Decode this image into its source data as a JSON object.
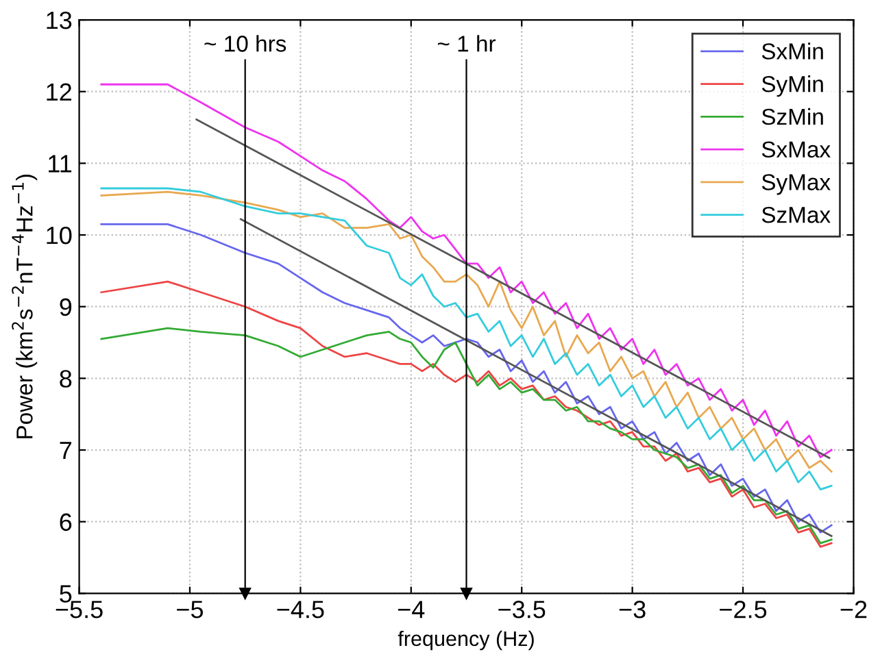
{
  "chart_data": {
    "type": "line",
    "xlabel": "frequency (Hz)",
    "ylabel": "Power (km$^{2}$s$^{−2}$nT$^{−4}$Hz$^{−1}$)",
    "x": [
      -5.4,
      -5.1,
      -4.95,
      -4.75,
      -4.6,
      -4.5,
      -4.4,
      -4.3,
      -4.2,
      -4.1,
      -4.05,
      -4.0,
      -3.95,
      -3.9,
      -3.85,
      -3.8,
      -3.75,
      -3.7,
      -3.65,
      -3.6,
      -3.55,
      -3.5,
      -3.45,
      -3.4,
      -3.35,
      -3.3,
      -3.25,
      -3.2,
      -3.15,
      -3.1,
      -3.05,
      -3.0,
      -2.95,
      -2.9,
      -2.85,
      -2.8,
      -2.75,
      -2.7,
      -2.65,
      -2.6,
      -2.55,
      -2.5,
      -2.45,
      -2.4,
      -2.35,
      -2.3,
      -2.25,
      -2.2,
      -2.15,
      -2.1
    ],
    "series": [
      {
        "name": "SxMin",
        "color": "#6666ee",
        "values": [
          10.15,
          10.15,
          10.0,
          9.75,
          9.6,
          9.4,
          9.2,
          9.05,
          8.95,
          8.85,
          8.7,
          8.6,
          8.5,
          8.6,
          8.45,
          8.5,
          8.55,
          8.5,
          8.3,
          8.4,
          8.1,
          8.25,
          7.95,
          8.1,
          7.8,
          7.95,
          7.65,
          7.75,
          7.5,
          7.6,
          7.3,
          7.4,
          7.15,
          7.25,
          6.95,
          7.1,
          6.85,
          6.95,
          6.65,
          6.8,
          6.5,
          6.6,
          6.35,
          6.45,
          6.15,
          6.3,
          6.0,
          6.1,
          5.85,
          5.95
        ]
      },
      {
        "name": "SyMin",
        "color": "#ee4444",
        "values": [
          9.2,
          9.35,
          9.2,
          9.0,
          8.8,
          8.7,
          8.45,
          8.3,
          8.35,
          8.25,
          8.2,
          8.2,
          8.1,
          8.2,
          8.05,
          7.95,
          8.05,
          7.95,
          8.1,
          7.9,
          8.0,
          7.85,
          7.9,
          7.7,
          7.75,
          7.6,
          7.55,
          7.45,
          7.35,
          7.4,
          7.2,
          7.25,
          7.05,
          7.05,
          6.85,
          6.95,
          6.7,
          6.75,
          6.55,
          6.6,
          6.35,
          6.45,
          6.2,
          6.25,
          6.05,
          6.1,
          5.85,
          5.9,
          5.65,
          5.7
        ]
      },
      {
        "name": "SzMin",
        "color": "#33aa33",
        "values": [
          8.55,
          8.7,
          8.65,
          8.6,
          8.45,
          8.3,
          8.4,
          8.5,
          8.6,
          8.65,
          8.55,
          8.5,
          8.3,
          8.15,
          8.4,
          8.5,
          8.2,
          7.9,
          8.05,
          7.85,
          7.95,
          7.8,
          7.85,
          7.7,
          7.7,
          7.55,
          7.6,
          7.4,
          7.4,
          7.3,
          7.25,
          7.15,
          7.15,
          7.0,
          6.95,
          6.9,
          6.75,
          6.8,
          6.6,
          6.65,
          6.4,
          6.5,
          6.3,
          6.3,
          6.1,
          6.15,
          5.9,
          5.95,
          5.7,
          5.75
        ]
      },
      {
        "name": "SxMax",
        "color": "#ee33ee",
        "values": [
          12.1,
          12.1,
          11.85,
          11.5,
          11.3,
          11.1,
          10.9,
          10.75,
          10.5,
          10.2,
          10.1,
          10.25,
          10.05,
          9.95,
          10.0,
          9.8,
          9.6,
          9.6,
          9.4,
          9.55,
          9.2,
          9.35,
          9.05,
          9.2,
          8.9,
          9.05,
          8.7,
          8.9,
          8.55,
          8.7,
          8.4,
          8.55,
          8.2,
          8.4,
          8.05,
          8.2,
          7.9,
          8.0,
          7.7,
          7.85,
          7.55,
          7.7,
          7.35,
          7.55,
          7.2,
          7.4,
          7.05,
          7.2,
          6.9,
          7.0
        ]
      },
      {
        "name": "SyMax",
        "color": "#e8a850",
        "values": [
          10.55,
          10.6,
          10.55,
          10.45,
          10.35,
          10.25,
          10.3,
          10.1,
          10.1,
          10.15,
          9.95,
          10.0,
          9.7,
          9.55,
          9.35,
          9.35,
          9.45,
          9.3,
          9.0,
          9.35,
          8.95,
          8.7,
          9.0,
          8.6,
          8.8,
          8.3,
          8.6,
          8.35,
          8.5,
          8.1,
          8.3,
          8.0,
          8.1,
          7.75,
          7.95,
          7.6,
          7.8,
          7.45,
          7.6,
          7.3,
          7.45,
          7.15,
          7.3,
          7.0,
          7.15,
          6.85,
          7.0,
          6.75,
          6.85,
          6.7
        ]
      },
      {
        "name": "SzMax",
        "color": "#33ccdd",
        "values": [
          10.65,
          10.65,
          10.6,
          10.4,
          10.3,
          10.3,
          10.25,
          10.2,
          9.85,
          9.75,
          9.4,
          9.3,
          9.45,
          9.15,
          9.0,
          9.05,
          8.85,
          8.9,
          8.65,
          8.8,
          8.45,
          8.6,
          8.3,
          8.55,
          8.2,
          8.35,
          8.05,
          8.2,
          7.9,
          8.05,
          7.75,
          7.9,
          7.6,
          7.75,
          7.45,
          7.6,
          7.3,
          7.45,
          7.15,
          7.3,
          7.0,
          7.15,
          6.85,
          7.0,
          6.7,
          6.85,
          6.55,
          6.7,
          6.45,
          6.5
        ]
      },
      {
        "type": "line",
        "color": "#555555",
        "x": [
          -4.97,
          -2.11
        ],
        "values": [
          11.61,
          6.89
        ]
      },
      {
        "type": "line",
        "color": "#555555",
        "x": [
          -4.77,
          -2.1
        ],
        "values": [
          10.22,
          5.8
        ]
      }
    ],
    "ref_lines": [
      {
        "axis": "x",
        "value": -4.75,
        "label": "~ 10 hrs",
        "color": "#000000"
      },
      {
        "axis": "x",
        "value": -3.75,
        "label": "~ 1 hr",
        "color": "#000000"
      }
    ],
    "xlim": [
      -5.5,
      -2
    ],
    "ylim": [
      5,
      13
    ],
    "xticks": [
      {
        "value": -5.5,
        "label": "−5.5"
      },
      {
        "value": -5,
        "label": "−5"
      },
      {
        "value": -4.5,
        "label": "−4.5"
      },
      {
        "value": -4,
        "label": "−4"
      },
      {
        "value": -3.5,
        "label": "−3.5"
      },
      {
        "value": -3,
        "label": "−3"
      },
      {
        "value": -2.5,
        "label": "−2.5"
      },
      {
        "value": -2,
        "label": "−2"
      }
    ],
    "yticks": [
      5,
      6,
      7,
      8,
      9,
      10,
      11,
      12,
      13
    ],
    "grid": true,
    "legend": "top right",
    "line_style": "solid",
    "marker": "none"
  }
}
